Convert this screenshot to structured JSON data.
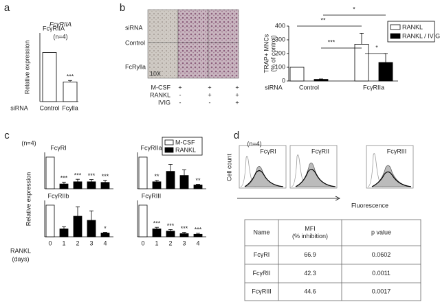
{
  "panel_labels": [
    "a",
    "b",
    "c",
    "d"
  ],
  "chart_data": [
    {
      "type": "bar",
      "title": "FcγRIIA",
      "subtitle": "(n=4)",
      "ylabel": "Relative expression",
      "xlabel": "siRNA",
      "categories": [
        "Control",
        "Fcylla"
      ],
      "values": [
        1,
        0.4
      ],
      "errors": [
        null,
        0.03
      ],
      "significance": [
        null,
        "***"
      ],
      "color": "#ffffff",
      "ylim": [
        0,
        1.4
      ]
    },
    {
      "type": "bar",
      "ylabel": [
        "TRAP+ MNCs",
        "(% of control)"
      ],
      "xlabel": "siRNA",
      "categories": [
        "Control",
        "FcγRIIa"
      ],
      "series": [
        {
          "name": "RANKL",
          "color": "#ffffff",
          "values": [
            100,
            268
          ],
          "errors": [
            null,
            80
          ]
        },
        {
          "name": "RANKL / IVIG",
          "color": "#000000",
          "values": [
            12,
            135
          ],
          "errors": [
            3,
            65
          ]
        }
      ],
      "annotations": [
        "**",
        "*",
        "***",
        "*"
      ],
      "ylim": [
        0,
        400
      ],
      "yticks": [
        0,
        100,
        200,
        300,
        400
      ],
      "legend": "top-right"
    },
    {
      "type": "bar",
      "title": "FcγRI",
      "series": [
        {
          "name": "M-CSF",
          "color": "#ffffff",
          "values": [
            1,
            null,
            null,
            null,
            null
          ]
        },
        {
          "name": "RANKL",
          "color": "#000000",
          "values": [
            null,
            0.15,
            0.22,
            0.22,
            0.2
          ],
          "errors": [
            null,
            0.06,
            0.08,
            0.07,
            0.07
          ],
          "significance": [
            null,
            "***",
            "***",
            "***",
            "***"
          ]
        }
      ],
      "ylim": [
        0,
        1.15
      ],
      "legend": "top-right"
    },
    {
      "type": "bar",
      "title": "FcγRIIa",
      "series": [
        {
          "name": "M-CSF",
          "color": "#ffffff",
          "values": [
            1,
            null,
            null,
            null,
            null
          ]
        },
        {
          "name": "RANKL",
          "color": "#000000",
          "values": [
            null,
            0.22,
            0.55,
            0.42,
            0.12
          ],
          "errors": [
            null,
            0.05,
            0.22,
            0.18,
            0.02
          ],
          "significance": [
            null,
            "**",
            null,
            null,
            "**"
          ]
        }
      ],
      "ylim": [
        0,
        1.15
      ]
    },
    {
      "type": "bar",
      "title": "FcγRIIb",
      "categories": [
        "0",
        "1",
        "2",
        "3",
        "4"
      ],
      "series": [
        {
          "name": "M-CSF",
          "color": "#ffffff",
          "values": [
            1,
            null,
            null,
            null,
            null
          ]
        },
        {
          "name": "RANKL",
          "color": "#000000",
          "values": [
            null,
            0.25,
            0.65,
            0.52,
            0.12
          ],
          "errors": [
            null,
            0.07,
            0.3,
            0.3,
            0.02
          ],
          "significance": [
            null,
            null,
            null,
            null,
            "*"
          ]
        }
      ],
      "ylim": [
        0,
        1.15
      ]
    },
    {
      "type": "bar",
      "title": "FcγRIII",
      "categories": [
        "0",
        "1",
        "2",
        "3",
        "4"
      ],
      "series": [
        {
          "name": "M-CSF",
          "color": "#ffffff",
          "values": [
            1,
            null,
            null,
            null,
            null
          ]
        },
        {
          "name": "RANKL",
          "color": "#000000",
          "values": [
            null,
            0.25,
            0.18,
            0.1,
            0.08
          ],
          "errors": [
            null,
            0.05,
            0.05,
            0.04,
            0.03
          ],
          "significance": [
            null,
            "***",
            "***",
            "***",
            "***"
          ]
        }
      ],
      "ylim": [
        0,
        1.15
      ]
    }
  ],
  "micrograph": {
    "row_header": "siRNA",
    "rows": [
      "Control",
      "FcRylla"
    ],
    "magnification": "10X"
  },
  "treatment_table": {
    "rows": [
      [
        "M-CSF",
        "+",
        "+",
        "+"
      ],
      [
        "RANKL",
        "-",
        "+",
        "+"
      ],
      [
        "IVIG",
        "-",
        "-",
        "+"
      ]
    ]
  },
  "panel_c": {
    "note": "(n=4)",
    "ylabel": "Relative expression",
    "xlabel": [
      "RANKL",
      "(days)"
    ]
  },
  "flow": {
    "note": "(n=4)",
    "titles": [
      "FcγRI",
      "FcγRII",
      "FcγRIII"
    ],
    "ylabel": "Cell count",
    "xlabel": "Fluorescence"
  },
  "table": {
    "header": [
      [
        "Name"
      ],
      [
        "MFI",
        "(% inhibition)"
      ],
      [
        "p value"
      ]
    ],
    "rows": [
      [
        "FcγRI",
        66.9,
        0.0602
      ],
      [
        "FcγRII",
        42.3,
        0.0011
      ],
      [
        "FcγRIII",
        44.6,
        0.0017
      ]
    ]
  }
}
